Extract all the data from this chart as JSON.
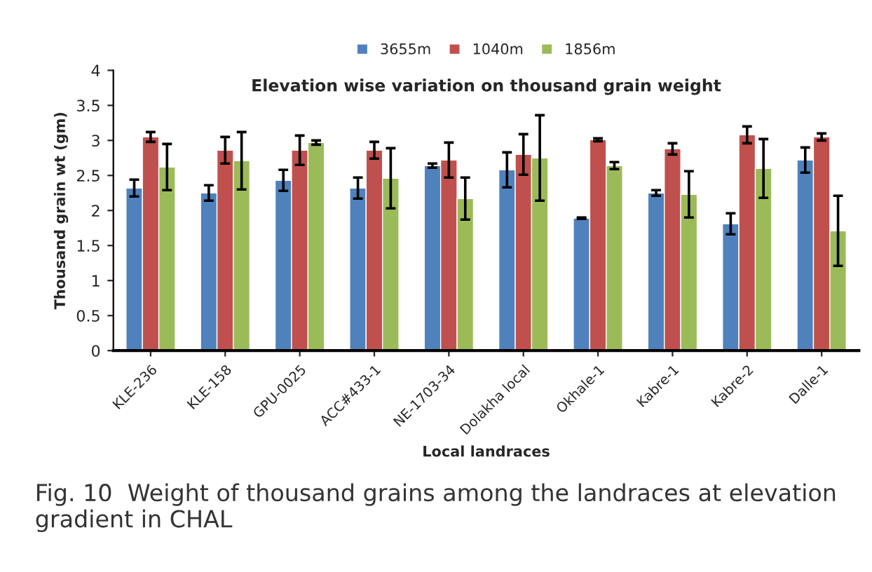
{
  "chart_data": {
    "type": "bar",
    "title": "Elevation wise variation on thousand grain weight",
    "xlabel": "Local landraces",
    "ylabel": "Thousand grain wt (gm)",
    "categories": [
      "KLE-236",
      "KLE-158",
      "GPU-0025",
      "ACC#433-1",
      "NE-1703-34",
      "Dolakha local",
      "Okhale-1",
      "Kabre-1",
      "Kabre-2",
      "Dalle-1"
    ],
    "series": [
      {
        "name": "3655m",
        "color": "#4f81bd",
        "values": [
          2.32,
          2.25,
          2.43,
          2.32,
          2.64,
          2.58,
          1.89,
          2.25,
          1.81,
          2.72
        ],
        "errors": [
          0.12,
          0.11,
          0.15,
          0.15,
          0.03,
          0.25,
          0.01,
          0.04,
          0.15,
          0.18
        ]
      },
      {
        "name": "1040m",
        "color": "#c0504d",
        "values": [
          3.05,
          2.86,
          2.86,
          2.86,
          2.72,
          2.8,
          3.01,
          2.88,
          3.08,
          3.05
        ],
        "errors": [
          0.07,
          0.19,
          0.21,
          0.12,
          0.25,
          0.29,
          0.02,
          0.08,
          0.12,
          0.05
        ]
      },
      {
        "name": "1856m",
        "color": "#9bbb59",
        "values": [
          2.62,
          2.71,
          2.97,
          2.46,
          2.17,
          2.75,
          2.64,
          2.23,
          2.6,
          1.71
        ],
        "errors": [
          0.33,
          0.41,
          0.03,
          0.43,
          0.3,
          0.61,
          0.05,
          0.33,
          0.42,
          0.5
        ]
      }
    ],
    "ylim": [
      0,
      4
    ],
    "yticks": [
      0,
      0.5,
      1,
      1.5,
      2,
      2.5,
      3,
      3.5,
      4
    ],
    "grid": false,
    "legend": "top",
    "annotations": [
      "Fig. 10  Weight of thousand grains among the landraces at elevation gradient in CHAL"
    ]
  }
}
